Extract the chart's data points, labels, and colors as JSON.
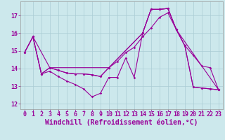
{
  "xlabel": "Windchill (Refroidissement éolien,°C)",
  "bg_color": "#cce8ec",
  "line_color": "#990099",
  "xlim": [
    -0.5,
    23.5
  ],
  "ylim": [
    11.7,
    17.8
  ],
  "yticks": [
    12,
    13,
    14,
    15,
    16,
    17
  ],
  "xticks": [
    0,
    1,
    2,
    3,
    4,
    5,
    6,
    7,
    8,
    9,
    10,
    11,
    12,
    13,
    14,
    15,
    16,
    17,
    18,
    19,
    20,
    21,
    22,
    23
  ],
  "lines": [
    {
      "x": [
        0,
        1,
        2,
        3,
        4,
        5,
        6,
        7,
        8,
        9,
        10,
        11,
        12,
        13,
        14,
        15,
        16,
        17,
        18,
        19,
        20,
        21,
        22,
        23
      ],
      "y": [
        14.9,
        15.8,
        13.7,
        13.85,
        13.55,
        13.3,
        13.1,
        12.85,
        12.4,
        12.6,
        13.5,
        13.5,
        14.6,
        13.5,
        16.0,
        17.35,
        17.35,
        17.4,
        16.2,
        15.3,
        12.95,
        12.9,
        12.85,
        12.8
      ]
    },
    {
      "x": [
        0,
        1,
        2,
        3,
        4,
        5,
        6,
        7,
        8,
        9,
        10,
        11,
        12,
        13,
        14,
        15,
        16,
        17,
        18,
        19,
        20,
        21,
        22,
        23
      ],
      "y": [
        14.9,
        15.8,
        13.7,
        14.05,
        13.9,
        13.75,
        13.7,
        13.7,
        13.65,
        13.55,
        14.05,
        14.4,
        14.9,
        15.2,
        15.8,
        16.3,
        16.9,
        17.15,
        16.2,
        15.3,
        14.75,
        14.15,
        14.05,
        12.8
      ]
    },
    {
      "x": [
        0,
        1,
        2,
        3,
        4,
        5,
        6,
        7,
        8,
        9,
        10,
        14,
        15,
        16,
        17,
        18,
        19,
        20,
        21,
        22,
        23
      ],
      "y": [
        14.9,
        15.8,
        13.7,
        14.05,
        13.9,
        13.75,
        13.7,
        13.7,
        13.65,
        13.55,
        14.05,
        16.0,
        17.35,
        17.35,
        17.4,
        16.2,
        15.3,
        12.95,
        12.9,
        12.85,
        12.8
      ]
    },
    {
      "x": [
        1,
        3,
        10,
        14,
        15,
        16,
        17,
        18,
        23
      ],
      "y": [
        15.8,
        14.05,
        14.05,
        16.0,
        17.35,
        17.35,
        17.4,
        16.2,
        12.8
      ]
    }
  ],
  "grid_color": "#aaccd4",
  "tick_color": "#990099",
  "tick_fontsize": 6,
  "xlabel_fontsize": 7
}
